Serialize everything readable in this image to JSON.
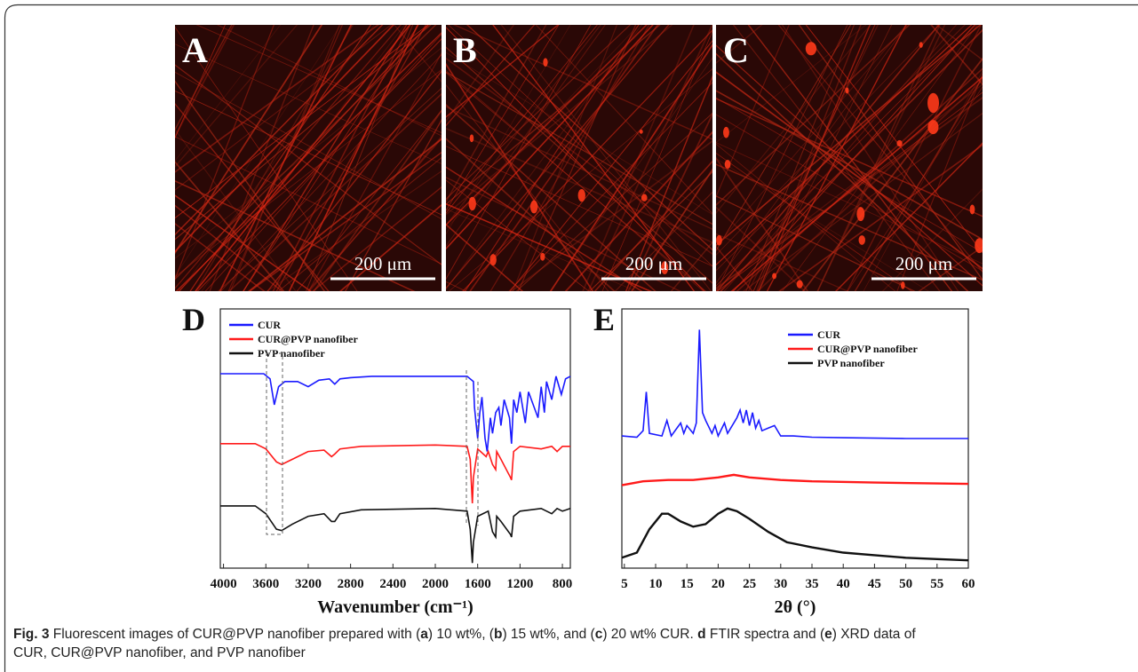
{
  "images": [
    {
      "label": "A",
      "scale_bar": "200 μm"
    },
    {
      "label": "B",
      "scale_bar": "200 μm"
    },
    {
      "label": "C",
      "scale_bar": "200 μm"
    }
  ],
  "chart_data": [
    {
      "type": "line",
      "panel": "D",
      "xlabel": "Wavenumber (cm⁻¹)",
      "xlim": [
        4030,
        725
      ],
      "xticks": [
        4000,
        3600,
        3200,
        2800,
        2400,
        2000,
        1600,
        1200,
        800
      ],
      "ylim": [
        0,
        100
      ],
      "series": [
        {
          "name": "CUR",
          "color": "#1a1aff",
          "x": [
            4030,
            3620,
            3560,
            3520,
            3480,
            3420,
            3300,
            3200,
            3100,
            3000,
            2950,
            2900,
            2800,
            2600,
            2000,
            1700,
            1640,
            1630,
            1600,
            1580,
            1560,
            1530,
            1510,
            1480,
            1460,
            1430,
            1400,
            1380,
            1350,
            1300,
            1280,
            1260,
            1230,
            1200,
            1150,
            1120,
            1030,
            1000,
            970,
            950,
            900,
            860,
            810,
            770,
            725
          ],
          "values": [
            75,
            75,
            73,
            63,
            70,
            72,
            72,
            70,
            72.5,
            73,
            71,
            73,
            73.5,
            74,
            74,
            74,
            72,
            62,
            50,
            60,
            66,
            50,
            45,
            58,
            52,
            60,
            62,
            55,
            65,
            58,
            48,
            65,
            60,
            68,
            56,
            68,
            58,
            70,
            60,
            72,
            65,
            74,
            67,
            73,
            74
          ]
        },
        {
          "name": "CUR@PVP nanofiber",
          "color": "#ff1a1a",
          "x": [
            4030,
            3700,
            3600,
            3500,
            3450,
            3350,
            3200,
            3050,
            2980,
            2950,
            2900,
            2700,
            2000,
            1700,
            1670,
            1650,
            1640,
            1600,
            1520,
            1500,
            1460,
            1430,
            1420,
            1380,
            1290,
            1280,
            1260,
            1200,
            1000,
            900,
            850,
            800,
            725
          ],
          "values": [
            48,
            48,
            46,
            41,
            40,
            42,
            45,
            45.5,
            43,
            44,
            46,
            47,
            47.5,
            47,
            42,
            25,
            35,
            46,
            43,
            45,
            40,
            38,
            45,
            42,
            35,
            34,
            45,
            47,
            46,
            47,
            45,
            47,
            47
          ]
        },
        {
          "name": "PVP nanofiber",
          "color": "#111111",
          "x": [
            4030,
            3700,
            3600,
            3500,
            3450,
            3350,
            3200,
            3050,
            2980,
            2950,
            2900,
            2700,
            2000,
            1700,
            1670,
            1650,
            1640,
            1600,
            1500,
            1460,
            1430,
            1420,
            1380,
            1290,
            1280,
            1260,
            1200,
            1000,
            900,
            850,
            800,
            725
          ],
          "values": [
            24,
            24,
            21,
            15,
            14.5,
            17,
            20,
            21,
            18,
            18,
            21,
            22.5,
            23,
            22,
            15,
            2,
            10,
            20,
            22,
            14,
            12,
            20,
            18,
            13,
            12,
            20,
            22,
            23,
            21,
            23,
            22,
            23
          ]
        }
      ]
    },
    {
      "type": "line",
      "panel": "E",
      "xlabel": "2θ (°)",
      "xlim": [
        4.6,
        60
      ],
      "xticks": [
        5,
        10,
        15,
        20,
        25,
        30,
        35,
        40,
        45,
        50,
        55,
        60
      ],
      "ylim": [
        0,
        100
      ],
      "series": [
        {
          "name": "CUR",
          "color": "#1a1aff",
          "x": [
            4.6,
            7,
            8,
            8.5,
            9,
            11,
            11.8,
            12.5,
            14,
            14.5,
            15,
            16,
            16.5,
            17,
            17.5,
            18,
            19,
            19.5,
            20,
            21,
            21.5,
            23,
            23.5,
            24,
            24.5,
            25,
            25.5,
            26,
            26.5,
            27,
            28,
            29,
            30,
            32,
            35,
            40,
            50,
            60
          ],
          "values": [
            51,
            50.5,
            53,
            68,
            52,
            51,
            57,
            51,
            56,
            52,
            55,
            52,
            56,
            92,
            60,
            57,
            52,
            55,
            51,
            56,
            52,
            58,
            61,
            56,
            61,
            55,
            60,
            54,
            57,
            53,
            54,
            55,
            51,
            51,
            50.5,
            50.3,
            50,
            50
          ]
        },
        {
          "name": "CUR@PVP nanofiber",
          "color": "#ff1a1a",
          "x": [
            4.6,
            8,
            12,
            16,
            20,
            22.5,
            25,
            30,
            35,
            45,
            60
          ],
          "values": [
            32,
            33.5,
            34,
            34,
            35,
            36,
            35,
            34,
            33.5,
            33,
            32.5
          ]
        },
        {
          "name": "PVP nanofiber",
          "color": "#111111",
          "x": [
            4.6,
            7,
            9,
            11,
            12,
            14,
            16,
            18,
            20,
            21.5,
            23,
            25,
            28,
            31,
            35,
            40,
            45,
            50,
            55,
            60
          ],
          "values": [
            4,
            6,
            15,
            21,
            21,
            18,
            16,
            17,
            21,
            23,
            22,
            19,
            14,
            10,
            8,
            6,
            5,
            4,
            3.5,
            3
          ]
        }
      ]
    }
  ],
  "caption": {
    "parts": [
      "Fig. 3",
      " Fluorescent images of CUR@PVP nanofiber prepared with (",
      "a",
      ") 10 wt%, (",
      "b",
      ") 15 wt%, and (",
      "c",
      ") 20 wt% CUR. ",
      "d",
      " FTIR spectra and (",
      "e",
      ") XRD data of",
      "CUR, CUR@PVP nanofiber, and PVP nanofiber"
    ]
  }
}
